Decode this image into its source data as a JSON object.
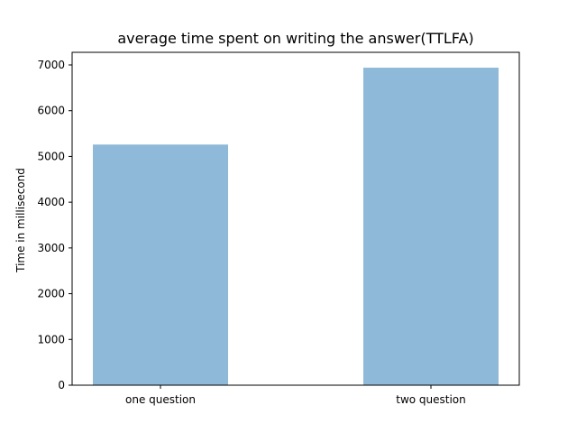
{
  "chart_data": {
    "type": "bar",
    "title": "average time spent on writing the answer(TTLFA)",
    "xlabel": "",
    "ylabel": "Time in millisecond",
    "categories": [
      "one question",
      "two question"
    ],
    "values": [
      5260,
      6940
    ],
    "ylim": [
      0,
      7000
    ],
    "yticks": [
      0,
      1000,
      2000,
      3000,
      4000,
      5000,
      6000,
      7000
    ],
    "bar_color": "#8fb9d9",
    "grid": false,
    "legend": "none"
  }
}
